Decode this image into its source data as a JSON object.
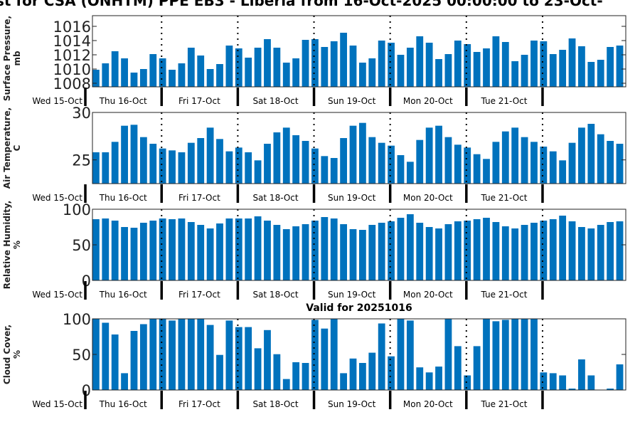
{
  "title": "st for CSA (ONHTM) PPE EB3  - Liberia from 16-Oct-2025 00:00:00 to 23-Oct-",
  "subtitle": "Valid for 20251016",
  "bar_color": "#0072BD",
  "day_labels": [
    "Wed 15-Oct",
    "Thu 16-Oct",
    "Fri 17-Oct",
    "Sat 18-Oct",
    "Sun 19-Oct",
    "Mon 20-Oct",
    "Tue 21-Oct"
  ],
  "chart_data": [
    {
      "type": "bar",
      "ylabel": "Surface Pressure, mb",
      "ylim": [
        1007.5,
        1017.5
      ],
      "yticks": [
        1008,
        1010,
        1012,
        1014,
        1016
      ],
      "values": [
        1009.9,
        1010.8,
        1012.5,
        1011.5,
        1009.5,
        1010.0,
        1012.1,
        1011.5,
        1009.9,
        1010.8,
        1013.0,
        1011.9,
        1010.0,
        1010.7,
        1013.3,
        1012.9,
        1011.6,
        1013.0,
        1014.2,
        1013.0,
        1010.9,
        1011.5,
        1014.1,
        1014.2,
        1013.1,
        1013.9,
        1015.1,
        1013.3,
        1010.9,
        1011.5,
        1014.0,
        1013.7,
        1012.0,
        1013.0,
        1014.6,
        1013.7,
        1011.4,
        1012.1,
        1014.0,
        1013.5,
        1012.4,
        1012.9,
        1014.6,
        1013.8,
        1011.1,
        1012.0,
        1014.0,
        1013.9,
        1012.1,
        1012.7,
        1014.3,
        1013.2,
        1011.0,
        1011.3,
        1013.1,
        1013.3
      ]
    },
    {
      "type": "bar",
      "ylabel": "Air Temperature, C",
      "ylim": [
        22.5,
        30
      ],
      "yticks": [
        25,
        30
      ],
      "values": [
        25.8,
        25.8,
        26.9,
        28.6,
        28.7,
        27.4,
        26.7,
        26.2,
        26.0,
        25.8,
        26.8,
        27.3,
        28.4,
        27.2,
        25.9,
        26.3,
        25.8,
        24.95,
        26.7,
        27.9,
        28.4,
        27.6,
        27.0,
        26.2,
        25.4,
        25.2,
        27.3,
        28.6,
        28.9,
        27.4,
        26.8,
        26.5,
        25.5,
        24.8,
        27.1,
        28.4,
        28.6,
        27.4,
        26.6,
        26.3,
        25.6,
        25.1,
        26.9,
        28.0,
        28.4,
        27.4,
        26.9,
        26.4,
        25.9,
        24.95,
        26.8,
        28.4,
        28.8,
        27.7,
        27.0,
        26.7
      ]
    },
    {
      "type": "bar",
      "ylabel": "Relative Humidity, %",
      "ylim": [
        0,
        100
      ],
      "yticks": [
        0,
        50,
        100
      ],
      "values": [
        86,
        87,
        84,
        75,
        74,
        81,
        84,
        87,
        86,
        87,
        82,
        78,
        73,
        80,
        87,
        87,
        87,
        90,
        84,
        78,
        72,
        76,
        79,
        84,
        89,
        87,
        79,
        72,
        71,
        78,
        81,
        83,
        88,
        93,
        81,
        75,
        73,
        79,
        83,
        84,
        86,
        88,
        82,
        76,
        73,
        78,
        81,
        84,
        86,
        91,
        83,
        75,
        73,
        78,
        82,
        83
      ]
    },
    {
      "type": "bar",
      "ylabel": "Cloud Cover, %",
      "ylim": [
        0,
        100
      ],
      "yticks": [
        0,
        50,
        100
      ],
      "values": [
        100,
        94.5,
        78,
        23.6,
        83,
        92.5,
        100,
        100,
        97.6,
        100,
        100,
        100,
        91.4,
        49.3,
        97.6,
        88.4,
        88.4,
        58.6,
        84.2,
        50.3,
        15.4,
        39,
        38,
        98.6,
        86.3,
        100,
        23.6,
        44.2,
        38,
        52.4,
        93.5,
        47.3,
        100,
        97.6,
        31.8,
        24.7,
        32.9,
        100,
        61.6,
        20.5,
        61.6,
        100,
        96.6,
        98.6,
        100,
        100,
        100,
        24.7,
        23.6,
        20.5,
        2,
        43,
        20.5,
        0,
        2,
        36
      ]
    }
  ]
}
